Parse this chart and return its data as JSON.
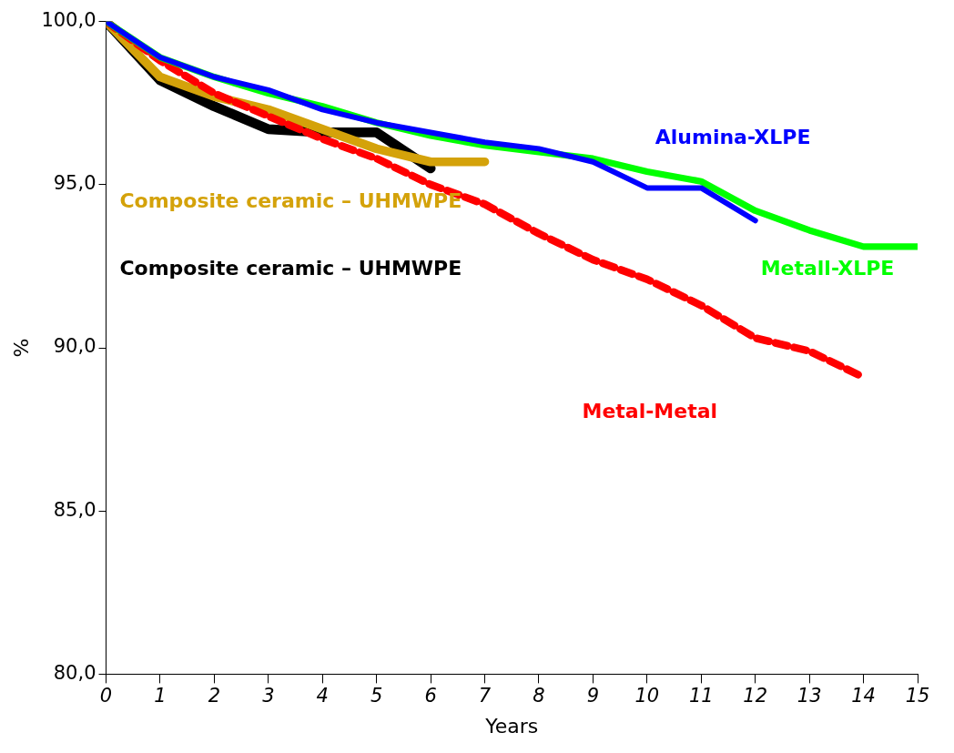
{
  "chart_data": {
    "type": "line",
    "xlabel": "Years",
    "ylabel": "%",
    "x": [
      0,
      1,
      2,
      3,
      4,
      5,
      6,
      7,
      8,
      9,
      10,
      11,
      12,
      13,
      14,
      15
    ],
    "xlim": [
      0,
      15
    ],
    "xticks": [
      0,
      1,
      2,
      3,
      4,
      5,
      6,
      7,
      8,
      9,
      10,
      11,
      12,
      13,
      14,
      15
    ],
    "ylim": [
      80,
      100
    ],
    "yticks": [
      {
        "value": 80,
        "label": "80,0"
      },
      {
        "value": 85,
        "label": "85,0"
      },
      {
        "value": 90,
        "label": "90,0"
      },
      {
        "value": 95,
        "label": "95,0"
      },
      {
        "value": 100,
        "label": "100,0"
      }
    ],
    "grid": false,
    "legend": false,
    "marker": "none",
    "series": [
      {
        "name": "Alumina-XLPE",
        "color": "#0000ff",
        "values": [
          100,
          98.9,
          98.3,
          97.9,
          97.3,
          96.9,
          96.6,
          96.3,
          96.1,
          95.7,
          94.9,
          94.9,
          93.9,
          null,
          null,
          null
        ]
      },
      {
        "name": "Metall-XLPE",
        "color": "#00ff00",
        "values": [
          100,
          98.9,
          98.3,
          97.8,
          97.4,
          96.9,
          96.5,
          96.2,
          96.0,
          95.8,
          95.4,
          95.1,
          94.2,
          93.6,
          93.1,
          93.1
        ]
      },
      {
        "name": "Metal-Metal",
        "color": "#ff0000",
        "line_style": "dashed",
        "values": [
          100,
          98.8,
          97.8,
          97.1,
          96.4,
          95.8,
          95.0,
          94.4,
          93.5,
          92.7,
          92.1,
          91.3,
          90.3,
          89.9,
          89.1,
          null
        ]
      },
      {
        "name": "Composite ceramic – UHMWPE",
        "color": "#d4a20a",
        "values": [
          100,
          98.3,
          97.7,
          97.3,
          96.7,
          96.1,
          95.7,
          95.7,
          null,
          null,
          null,
          null,
          null,
          null,
          null,
          null
        ]
      },
      {
        "name": "Composite ceramic – UHMWPE",
        "color": "#000000",
        "values": [
          100,
          98.2,
          97.4,
          96.7,
          96.6,
          96.6,
          95.5,
          null,
          null,
          null,
          null,
          null,
          null,
          null,
          null,
          null
        ]
      }
    ]
  }
}
